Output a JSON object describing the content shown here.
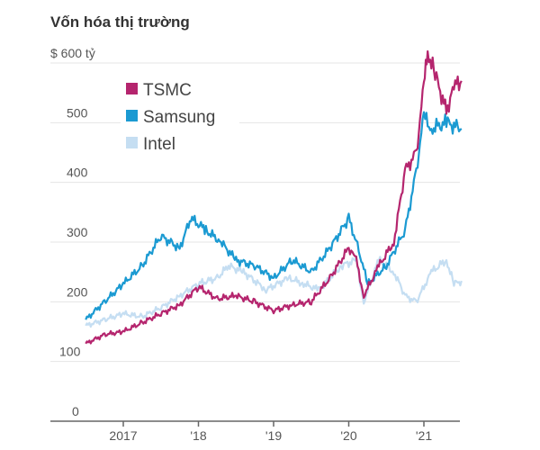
{
  "chart_data": {
    "type": "line",
    "title": "Vốn hóa thị trường",
    "ylabel": "",
    "xlabel": "",
    "ylim": [
      0,
      600
    ],
    "xlim": [
      2016.5,
      2021.5
    ],
    "yticks": [
      0,
      100,
      200,
      300,
      400,
      500,
      600
    ],
    "ytick_labels": [
      "0",
      "100",
      "200",
      "300",
      "400",
      "500",
      "$ 600 tỷ"
    ],
    "xticks": [
      2017,
      2018,
      2019,
      2020,
      2021
    ],
    "xtick_labels": [
      "2017",
      "'18",
      "'19",
      "'20",
      "'21"
    ],
    "grid": true,
    "legend_position": "top-left",
    "series": [
      {
        "name": "Intel",
        "color": "#c5def2",
        "x": [
          2016.5,
          2016.75,
          2017.0,
          2017.25,
          2017.5,
          2017.75,
          2018.0,
          2018.25,
          2018.4,
          2018.6,
          2018.9,
          2019.2,
          2019.4,
          2019.6,
          2019.9,
          2020.1,
          2020.2,
          2020.4,
          2020.6,
          2020.75,
          2020.9,
          2021.1,
          2021.3,
          2021.4,
          2021.5
        ],
        "y": [
          160,
          170,
          180,
          175,
          190,
          210,
          230,
          240,
          260,
          250,
          220,
          240,
          230,
          220,
          260,
          270,
          200,
          270,
          250,
          210,
          200,
          250,
          270,
          230,
          235
        ]
      },
      {
        "name": "Samsung",
        "color": "#1b9ad2",
        "x": [
          2016.5,
          2016.75,
          2017.0,
          2017.25,
          2017.5,
          2017.75,
          2017.9,
          2018.1,
          2018.3,
          2018.5,
          2018.75,
          2019.0,
          2019.25,
          2019.5,
          2019.75,
          2020.0,
          2020.15,
          2020.25,
          2020.5,
          2020.75,
          2020.9,
          2021.0,
          2021.1,
          2021.3,
          2021.5
        ],
        "y": [
          170,
          200,
          230,
          260,
          310,
          290,
          340,
          320,
          300,
          270,
          260,
          240,
          270,
          250,
          290,
          340,
          280,
          230,
          260,
          320,
          420,
          510,
          490,
          500,
          490
        ]
      },
      {
        "name": "TSMC",
        "color": "#b5256e",
        "x": [
          2016.5,
          2016.75,
          2017.0,
          2017.25,
          2017.5,
          2017.75,
          2018.0,
          2018.25,
          2018.5,
          2018.75,
          2019.0,
          2019.25,
          2019.5,
          2019.75,
          2020.0,
          2020.1,
          2020.2,
          2020.4,
          2020.6,
          2020.75,
          2020.9,
          2021.0,
          2021.05,
          2021.15,
          2021.3,
          2021.4,
          2021.5
        ],
        "y": [
          130,
          145,
          150,
          165,
          180,
          195,
          225,
          205,
          210,
          200,
          185,
          195,
          200,
          240,
          290,
          270,
          210,
          260,
          300,
          420,
          450,
          560,
          620,
          580,
          520,
          560,
          570
        ]
      }
    ],
    "legend": [
      "TSMC",
      "Samsung",
      "Intel"
    ]
  }
}
